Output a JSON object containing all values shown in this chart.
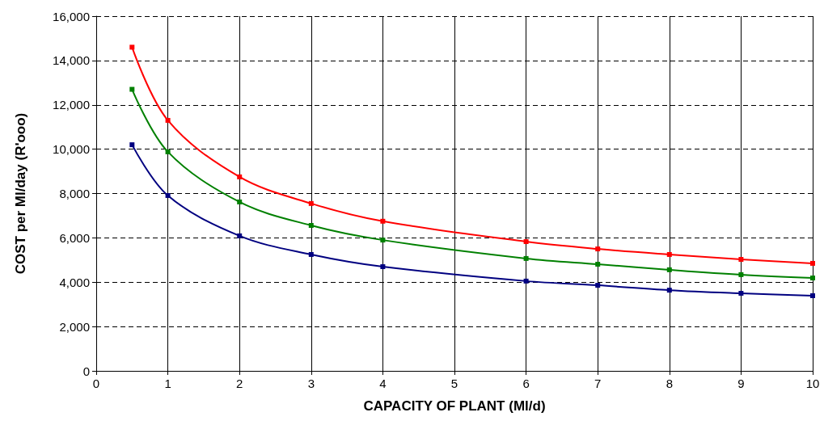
{
  "chart_data": {
    "type": "line",
    "xlabel": "CAPACITY OF PLANT (Ml/d)",
    "ylabel": "COST per Ml/day (R'ooo)",
    "x": [
      0.5,
      1,
      2,
      3,
      4,
      6,
      7,
      8,
      9,
      10
    ],
    "series": [
      {
        "color": "#ff0000",
        "values": [
          14600,
          11300,
          8750,
          7550,
          6750,
          5830,
          5500,
          5250,
          5030,
          4850
        ]
      },
      {
        "color": "#008000",
        "values": [
          12700,
          9880,
          7620,
          6560,
          5900,
          5070,
          4810,
          4560,
          4340,
          4190
        ]
      },
      {
        "color": "#000080",
        "values": [
          10200,
          7910,
          6090,
          5250,
          4700,
          4050,
          3860,
          3640,
          3500,
          3390
        ]
      }
    ],
    "xlim": [
      0,
      10
    ],
    "xticks": [
      0,
      1,
      2,
      3,
      4,
      5,
      6,
      7,
      8,
      9,
      10
    ],
    "ylim": [
      0,
      16000
    ],
    "yticks": [
      0,
      {
        "value": 2000,
        "label": "2,000"
      },
      {
        "value": 4000,
        "label": "4,000"
      },
      {
        "value": 6000,
        "label": "6,000"
      },
      {
        "value": 8000,
        "label": "8,000"
      },
      {
        "value": 10000,
        "label": "10,000"
      },
      {
        "value": 12000,
        "label": "12,000"
      },
      {
        "value": 14000,
        "label": "14,000"
      },
      {
        "value": 16000,
        "label": "16,000"
      }
    ],
    "grid": true,
    "marker": "square",
    "line_style": "solid"
  }
}
